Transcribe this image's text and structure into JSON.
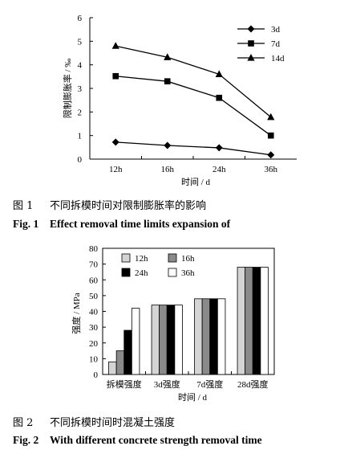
{
  "figure1": {
    "caption_zh_num": "图 1",
    "caption_zh": "不同拆模时间对限制膨胀率的影响",
    "caption_en_num": "Fig. 1",
    "caption_en": "Effect removal time limits expansion of"
  },
  "figure2": {
    "caption_zh_num": "图 2",
    "caption_zh": "不同拆模时间时混凝土强度",
    "caption_en_num": "Fig. 2",
    "caption_en": "With different concrete strength removal time"
  },
  "chart_data": [
    {
      "type": "line",
      "title": "",
      "xlabel": "时间 / d",
      "ylabel": "限制膨胀率 / ‰",
      "categories": [
        "12h",
        "16h",
        "24h",
        "36h"
      ],
      "ylim": [
        0,
        6
      ],
      "yticks": [
        0,
        1,
        2,
        3,
        4,
        5,
        6
      ],
      "grid": false,
      "legend_position": "top-right",
      "series": [
        {
          "name": "3d",
          "marker": "diamond",
          "values": [
            0.72,
            0.58,
            0.48,
            0.18
          ]
        },
        {
          "name": "7d",
          "marker": "square",
          "values": [
            3.52,
            3.3,
            2.6,
            1.0
          ]
        },
        {
          "name": "14d",
          "marker": "triangle",
          "values": [
            4.8,
            4.32,
            3.6,
            1.78
          ]
        }
      ]
    },
    {
      "type": "bar",
      "title": "",
      "xlabel": "时间 / d",
      "ylabel": "强度 / MPa",
      "categories": [
        "拆模强度",
        "3d强度",
        "7d强度",
        "28d强度"
      ],
      "ylim": [
        0,
        80
      ],
      "yticks": [
        0,
        10,
        20,
        30,
        40,
        50,
        60,
        70,
        80
      ],
      "grid": false,
      "legend_position": "top-left",
      "series": [
        {
          "name": "12h",
          "color": "#d4d4d4",
          "values": [
            8,
            44,
            48,
            68
          ]
        },
        {
          "name": "16h",
          "color": "#8a8a8a",
          "values": [
            15,
            44,
            48,
            68
          ]
        },
        {
          "name": "24h",
          "color": "#000000",
          "values": [
            28,
            44,
            48,
            68
          ]
        },
        {
          "name": "36h",
          "color": "#ffffff",
          "values": [
            42,
            44,
            48,
            68
          ]
        }
      ]
    }
  ]
}
